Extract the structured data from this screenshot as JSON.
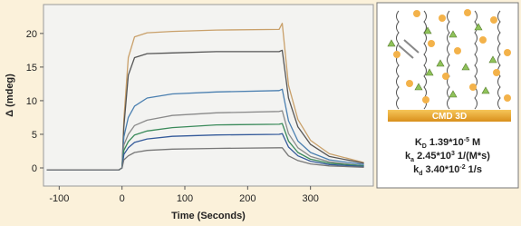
{
  "chart_data": {
    "type": "line",
    "x_label": "Time (Seconds)",
    "y_label": "Δ (mdeg)",
    "x": [
      -120,
      -5,
      0,
      3,
      10,
      20,
      40,
      80,
      150,
      250,
      255,
      265,
      280,
      300,
      330,
      385
    ],
    "series": [
      {
        "color": "#c9a06a",
        "values": [
          -0.3,
          -0.3,
          0,
          7.2,
          16.4,
          19.5,
          20.1,
          20.3,
          20.5,
          20.6,
          21.5,
          12.3,
          7.2,
          4.1,
          2.1,
          0.8
        ]
      },
      {
        "color": "#555555",
        "values": [
          -0.3,
          -0.3,
          0,
          6.1,
          13.8,
          16.4,
          17.0,
          17.1,
          17.3,
          17.3,
          17.5,
          10.4,
          6.1,
          3.5,
          1.7,
          0.7
        ]
      },
      {
        "color": "#4a7fb0",
        "values": [
          -0.3,
          -0.3,
          0,
          4.6,
          7.5,
          9.2,
          10.4,
          11.0,
          11.3,
          11.5,
          11.7,
          7.0,
          4.0,
          2.3,
          1.2,
          0.5
        ]
      },
      {
        "color": "#8a8a8a",
        "values": [
          -0.3,
          -0.3,
          0,
          3.4,
          5.0,
          6.3,
          7.1,
          7.8,
          8.2,
          8.4,
          8.5,
          5.1,
          3.0,
          1.7,
          0.9,
          0.3
        ]
      },
      {
        "color": "#3a8a5a",
        "values": [
          -0.3,
          -0.3,
          0,
          2.6,
          3.9,
          4.9,
          5.5,
          6.0,
          6.4,
          6.5,
          6.6,
          4.0,
          2.3,
          1.3,
          0.7,
          0.3
        ]
      },
      {
        "color": "#345a9a",
        "values": [
          -0.3,
          -0.3,
          0,
          2.0,
          3.0,
          3.8,
          4.3,
          4.7,
          4.9,
          5.0,
          5.1,
          3.1,
          1.8,
          1.0,
          0.5,
          0.2
        ]
      },
      {
        "color": "#777777",
        "values": [
          -0.3,
          -0.3,
          0,
          1.2,
          1.8,
          2.3,
          2.6,
          2.8,
          2.9,
          3.0,
          3.0,
          1.8,
          1.1,
          0.6,
          0.3,
          0.1
        ]
      }
    ],
    "xlim": [
      -125,
      400
    ],
    "ylim": [
      -2.7,
      24.3
    ],
    "xticks": [
      -100,
      0,
      100,
      200,
      300
    ],
    "yticks": [
      0,
      5,
      10,
      15,
      20
    ]
  },
  "panel": {
    "label": "CMD 3D",
    "constants": [
      {
        "symbol": "K",
        "subscript": "D",
        "mantissa": "1.39*10",
        "exponent": "-5",
        "unit": "M"
      },
      {
        "symbol": "k",
        "subscript": "a",
        "mantissa": "2.45*10",
        "exponent": "3",
        "unit": "1/(M*s)"
      },
      {
        "symbol": "k",
        "subscript": "d",
        "mantissa": "3.40*10",
        "exponent": "-2",
        "unit": "1/s"
      }
    ]
  }
}
